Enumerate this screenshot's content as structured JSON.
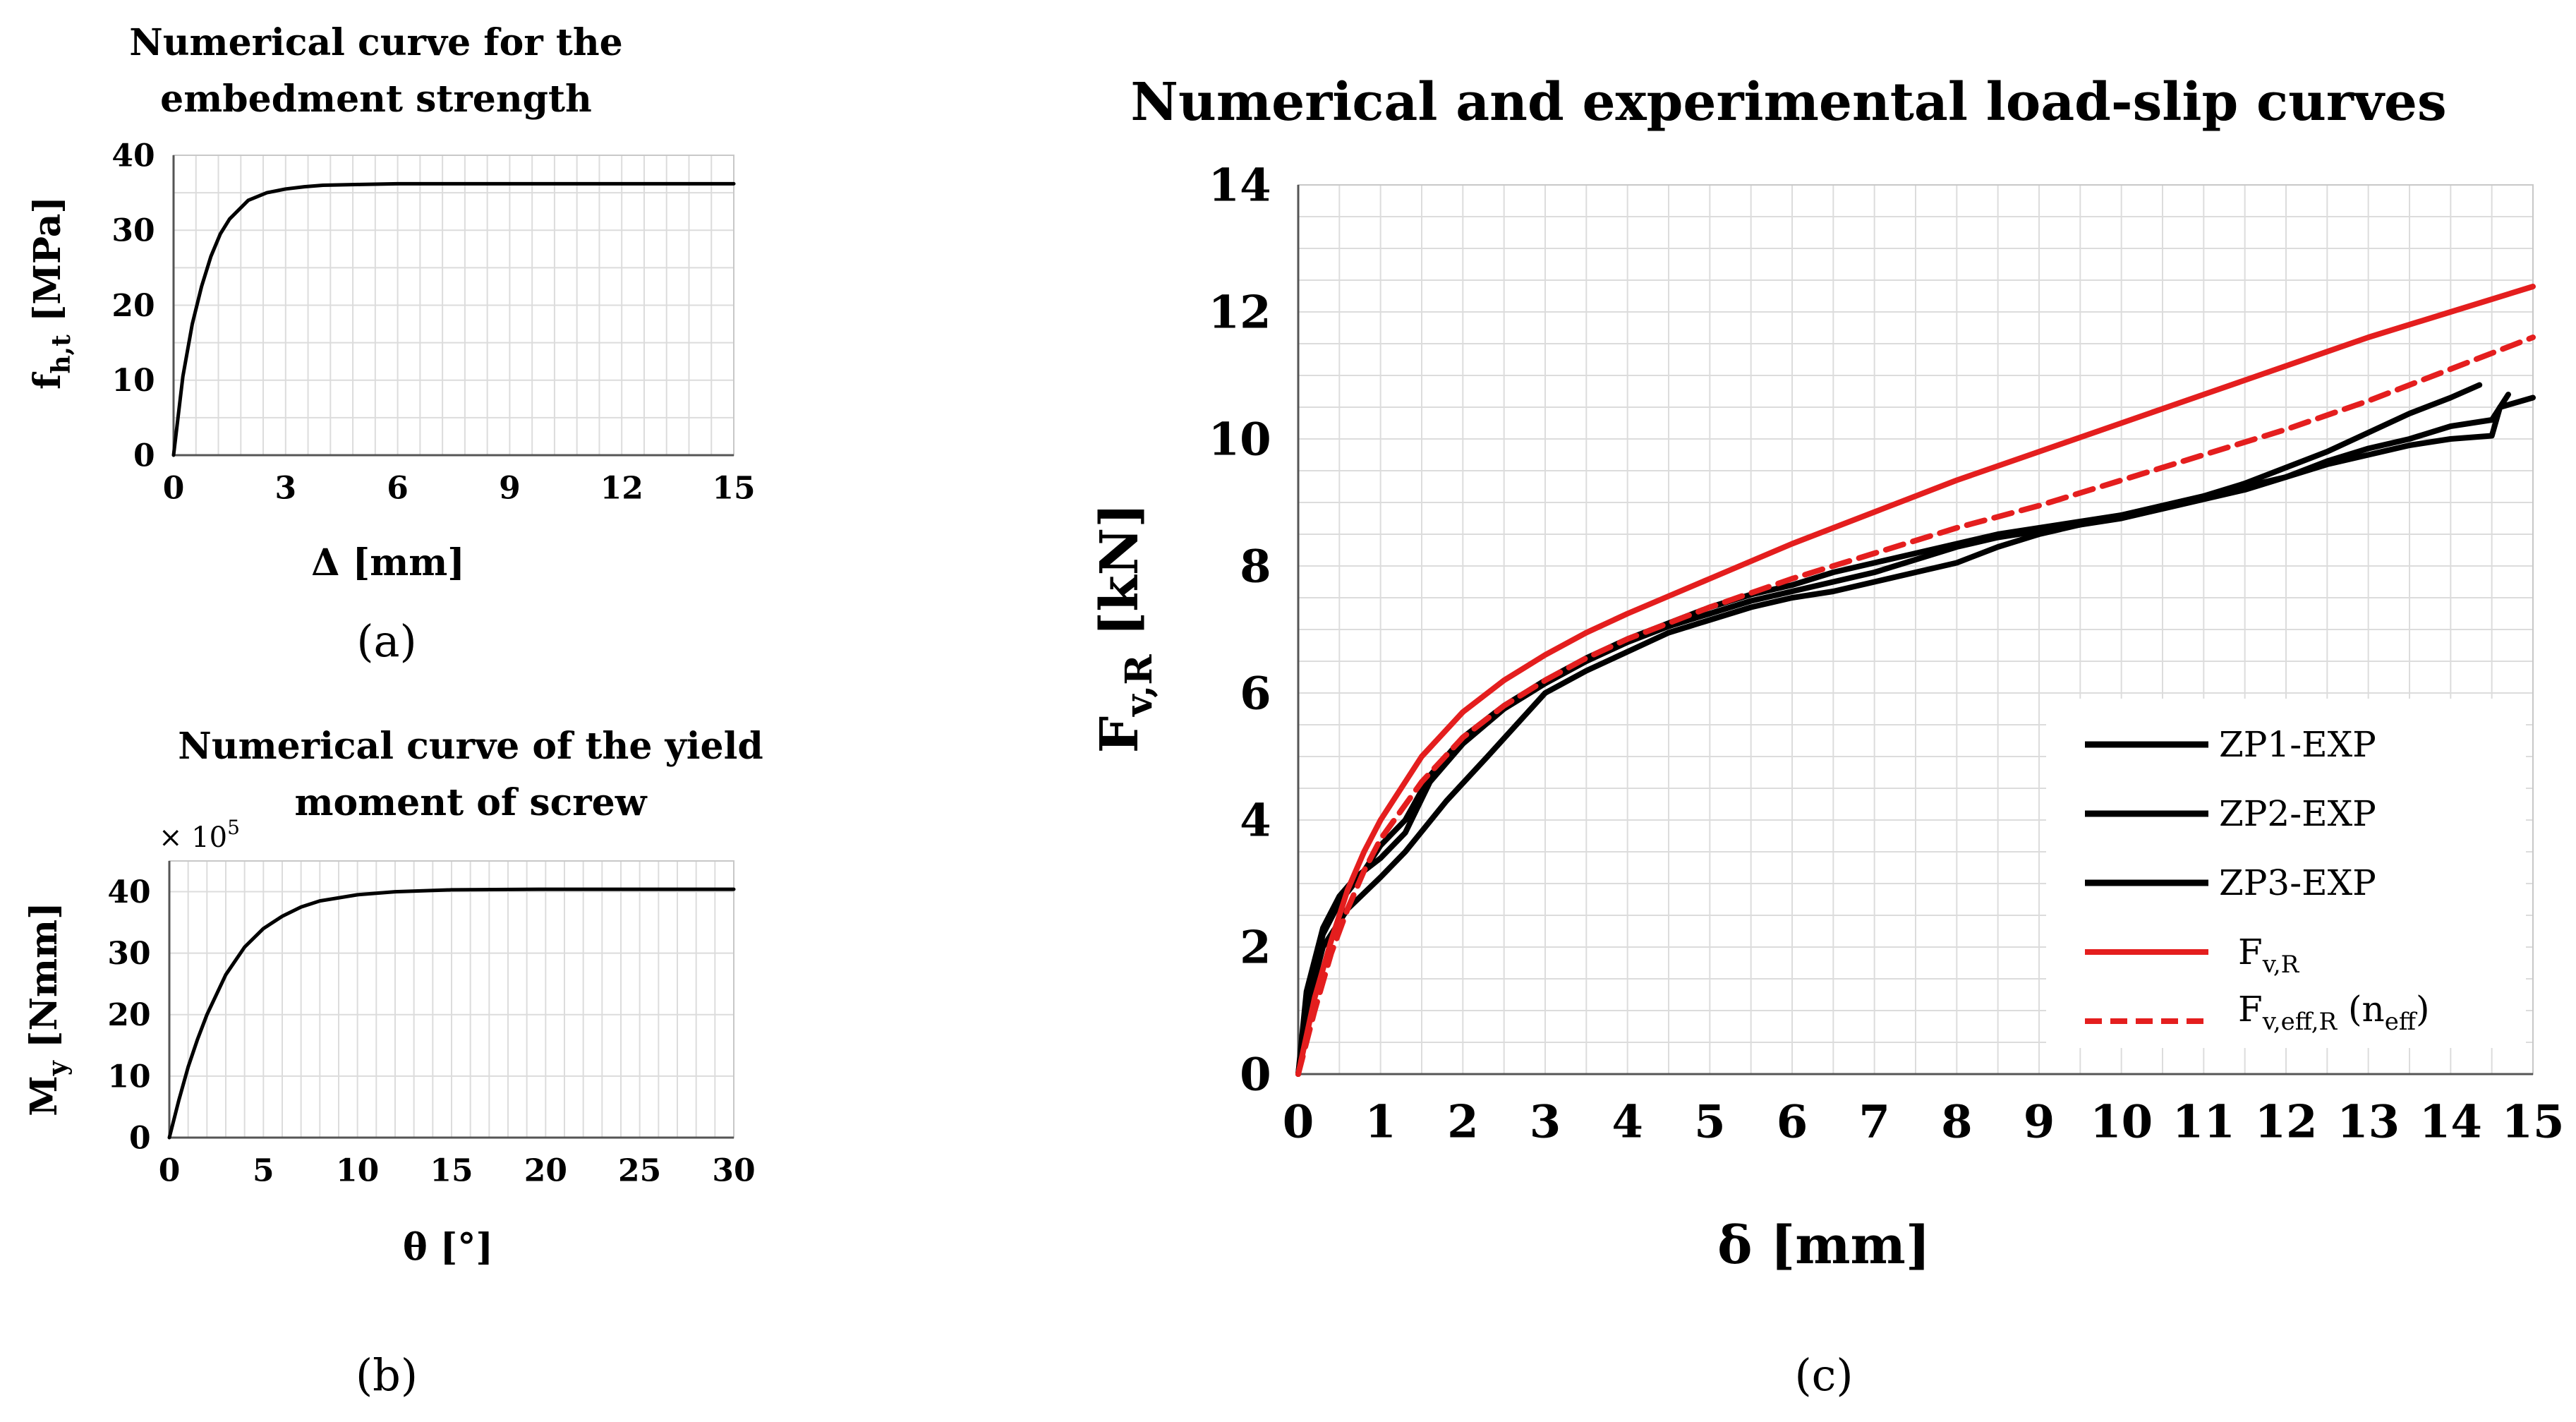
{
  "chart_data": [
    {
      "id": "a",
      "type": "line",
      "title": "Numerical curve for the embedment strength",
      "title_lines": [
        "Numerical curve for the",
        "embedment strength"
      ],
      "ylabel": "f",
      "ylabel_sub": "h,t",
      "ylabel_unit": "[MPa]",
      "xlabel": "Δ [mm]",
      "xlim": [
        0,
        15
      ],
      "ylim": [
        0,
        40
      ],
      "xticks": [
        0,
        3,
        6,
        9,
        12,
        15
      ],
      "yticks": [
        0,
        10,
        20,
        30,
        40
      ],
      "grid": true,
      "panel_label": "(a)",
      "series": [
        {
          "name": "embedment strength",
          "color": "#000000",
          "x": [
            0,
            0.25,
            0.5,
            0.75,
            1.0,
            1.25,
            1.5,
            2.0,
            2.5,
            3.0,
            3.5,
            4.0,
            5.0,
            6.0,
            8.0,
            10.0,
            12.0,
            15.0
          ],
          "y": [
            0,
            10.5,
            17.5,
            22.5,
            26.5,
            29.5,
            31.5,
            34.0,
            35.0,
            35.5,
            35.8,
            36.0,
            36.1,
            36.2,
            36.2,
            36.2,
            36.2,
            36.2
          ]
        }
      ]
    },
    {
      "id": "b",
      "type": "line",
      "title": "Numerical curve of the yield moment of screw",
      "title_lines": [
        "Numerical curve of the yield",
        "moment of screw"
      ],
      "ylabel": "M",
      "ylabel_sub": "y",
      "ylabel_unit": "[Nmm]",
      "xlabel": "θ [°]",
      "multiplier": "× 10",
      "multiplier_exp": "5",
      "xlim": [
        0,
        30
      ],
      "ylim": [
        0,
        45
      ],
      "xticks": [
        0,
        5,
        10,
        15,
        20,
        25,
        30
      ],
      "yticks": [
        0,
        10,
        20,
        30,
        40
      ],
      "grid": true,
      "panel_label": "(b)",
      "series": [
        {
          "name": "yield moment",
          "color": "#000000",
          "x": [
            0,
            0.5,
            1,
            1.5,
            2,
            3,
            4,
            5,
            6,
            7,
            8,
            10,
            12,
            15,
            20,
            25,
            30
          ],
          "y": [
            0,
            6,
            11.5,
            16,
            20,
            26.5,
            31,
            34,
            36,
            37.5,
            38.5,
            39.5,
            40.0,
            40.3,
            40.4,
            40.4,
            40.4
          ]
        }
      ]
    },
    {
      "id": "c",
      "type": "line",
      "title": "Numerical and experimental load-slip curves",
      "ylabel": "F",
      "ylabel_sub": "v,R",
      "ylabel_unit": "[kN]",
      "xlabel": "δ [mm]",
      "xlim": [
        0,
        15
      ],
      "ylim": [
        0,
        14
      ],
      "xticks": [
        0,
        1,
        2,
        3,
        4,
        5,
        6,
        7,
        8,
        9,
        10,
        11,
        12,
        13,
        14,
        15
      ],
      "yticks": [
        0,
        2,
        4,
        6,
        8,
        10,
        12,
        14
      ],
      "grid": true,
      "legend_position": "bottom-right",
      "panel_label": "(c)",
      "series": [
        {
          "name": "ZP1-EXP",
          "label_main": "ZP1-EXP",
          "color": "#000000",
          "dash": false,
          "x": [
            0,
            0.1,
            0.3,
            0.5,
            0.8,
            1.0,
            1.3,
            1.6,
            2.0,
            2.5,
            3.0,
            3.5,
            4.0,
            4.5,
            5.0,
            5.5,
            6.0,
            6.5,
            7.0,
            7.5,
            8.0,
            8.5,
            9.0,
            9.5,
            10.0,
            10.5,
            11.0,
            11.5,
            12.0,
            12.5,
            13.0,
            13.5,
            14.0,
            14.35
          ],
          "y": [
            0,
            1.1,
            2.2,
            2.7,
            3.2,
            3.6,
            4.0,
            4.7,
            5.3,
            5.8,
            6.2,
            6.55,
            6.85,
            7.1,
            7.35,
            7.55,
            7.7,
            7.9,
            8.05,
            8.2,
            8.35,
            8.5,
            8.6,
            8.7,
            8.8,
            8.95,
            9.1,
            9.3,
            9.55,
            9.8,
            10.1,
            10.4,
            10.65,
            10.85
          ]
        },
        {
          "name": "ZP2-EXP",
          "label_main": "ZP2-EXP",
          "color": "#000000",
          "dash": false,
          "x": [
            0,
            0.1,
            0.3,
            0.5,
            0.7,
            1.0,
            1.3,
            1.6,
            2.0,
            2.5,
            3.0,
            3.5,
            4.0,
            4.5,
            5.0,
            5.5,
            6.0,
            6.5,
            7.0,
            7.5,
            8.0,
            8.5,
            9.0,
            9.5,
            10.0,
            10.5,
            11.0,
            11.5,
            12.0,
            12.5,
            13.0,
            13.5,
            14.0,
            14.5,
            14.7
          ],
          "y": [
            0,
            1.3,
            2.3,
            2.8,
            3.1,
            3.4,
            3.8,
            4.6,
            5.2,
            5.75,
            6.15,
            6.5,
            6.8,
            7.05,
            7.25,
            7.45,
            7.6,
            7.75,
            7.9,
            8.1,
            8.3,
            8.45,
            8.55,
            8.65,
            8.75,
            8.9,
            9.05,
            9.2,
            9.4,
            9.65,
            9.85,
            10.0,
            10.2,
            10.3,
            10.7
          ]
        },
        {
          "name": "ZP3-EXP",
          "label_main": "ZP3-EXP",
          "color": "#000000",
          "dash": false,
          "x": [
            0,
            0.1,
            0.3,
            0.6,
            1.0,
            1.3,
            1.8,
            2.3,
            3.0,
            3.5,
            4.0,
            4.5,
            5.0,
            5.5,
            6.0,
            6.5,
            7.0,
            7.5,
            8.0,
            8.5,
            9.0,
            9.5,
            10.0,
            10.5,
            11.0,
            11.5,
            12.0,
            12.5,
            13.0,
            13.5,
            14.0,
            14.5,
            14.6,
            15.0
          ],
          "y": [
            0,
            1.0,
            2.0,
            2.6,
            3.1,
            3.5,
            4.3,
            5.0,
            6.0,
            6.35,
            6.65,
            6.95,
            7.15,
            7.35,
            7.5,
            7.6,
            7.75,
            7.9,
            8.05,
            8.3,
            8.5,
            8.65,
            8.8,
            8.95,
            9.1,
            9.25,
            9.4,
            9.6,
            9.75,
            9.9,
            10.0,
            10.05,
            10.5,
            10.65
          ]
        },
        {
          "name": "Fv,R",
          "label_main": "F",
          "label_sub": "v,R",
          "label_tail": "",
          "label_tail_sub": "",
          "label_tail_close": "",
          "color": "#e41e1e",
          "dash": false,
          "x": [
            0,
            0.2,
            0.4,
            0.6,
            0.8,
            1.0,
            1.5,
            2.0,
            2.5,
            3.0,
            3.5,
            4.0,
            5.0,
            6.0,
            7.0,
            8.0,
            9.0,
            10.0,
            11.0,
            12.0,
            13.0,
            14.0,
            15.0
          ],
          "y": [
            0,
            1.2,
            2.1,
            2.9,
            3.5,
            4.0,
            5.0,
            5.7,
            6.2,
            6.6,
            6.95,
            7.25,
            7.8,
            8.35,
            8.85,
            9.35,
            9.8,
            10.25,
            10.7,
            11.15,
            11.6,
            12.0,
            12.4
          ]
        },
        {
          "name": "Fv,eff,R (neff)",
          "label_main": "F",
          "label_sub": "v,eff,R",
          "label_tail": " (n",
          "label_tail_sub": "eff",
          "label_tail_close": ")",
          "color": "#e41e1e",
          "dash": true,
          "x": [
            0,
            0.2,
            0.4,
            0.6,
            0.8,
            1.0,
            1.5,
            2.0,
            2.5,
            3.0,
            3.5,
            4.0,
            5.0,
            6.0,
            7.0,
            8.0,
            9.0,
            10.0,
            11.0,
            12.0,
            13.0,
            14.0,
            15.0
          ],
          "y": [
            0,
            1.0,
            1.9,
            2.6,
            3.2,
            3.7,
            4.6,
            5.3,
            5.8,
            6.2,
            6.55,
            6.85,
            7.35,
            7.8,
            8.2,
            8.6,
            8.95,
            9.35,
            9.75,
            10.15,
            10.6,
            11.1,
            11.6
          ]
        }
      ]
    }
  ]
}
